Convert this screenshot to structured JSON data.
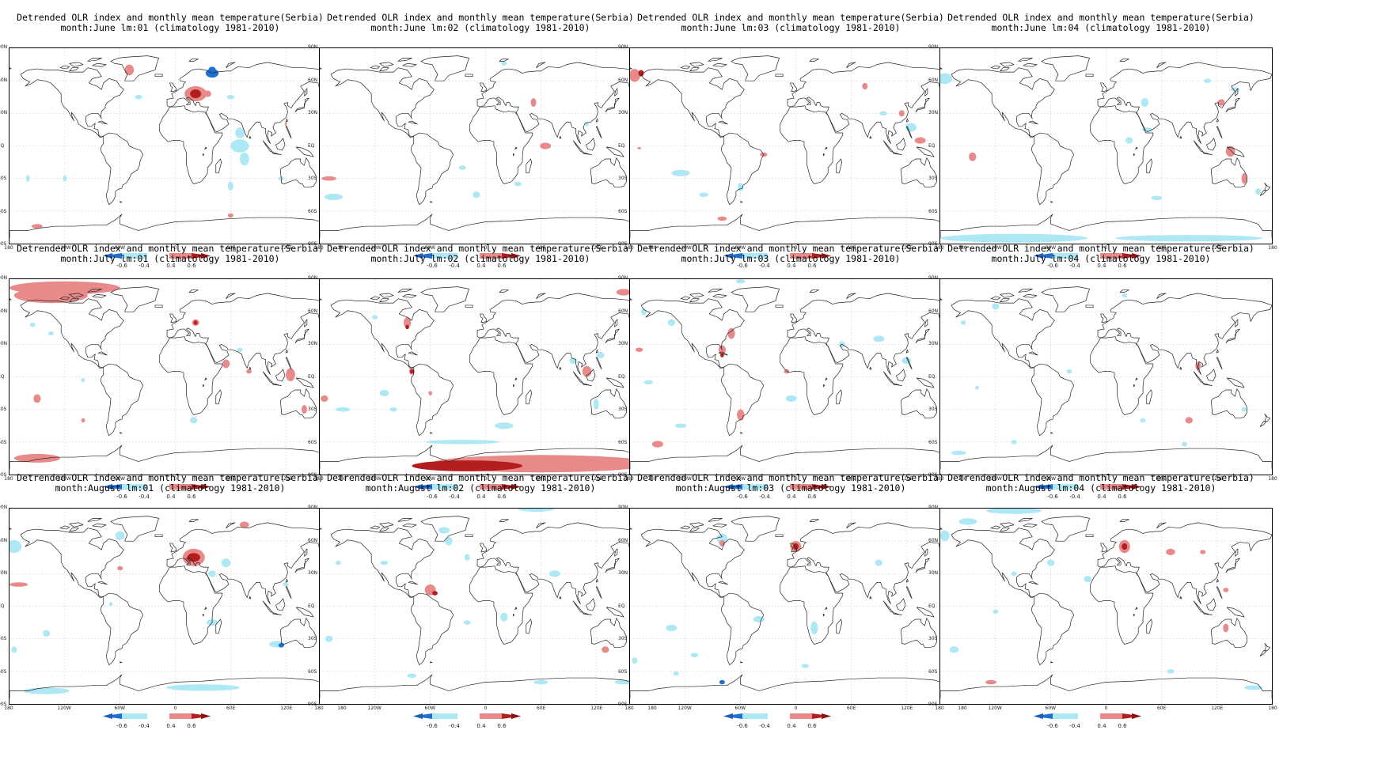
{
  "figure": {
    "title_line1": "Detrended OLR index and monthly mean temperature(Serbia)",
    "climatology": "(climatology 1981-2010)",
    "lat_labels": [
      "90N",
      "60N",
      "30N",
      "EQ",
      "30S",
      "60S",
      "90S"
    ],
    "lon_labels": [
      "180",
      "120W",
      "60W",
      "0",
      "60E",
      "120E",
      "180"
    ],
    "colorbar": {
      "labels": [
        "-0.6",
        "-0.4",
        "0.4",
        "0.6"
      ],
      "colors": {
        "strong_neg": "#1e6fd0",
        "weak_neg": "#aee8f5",
        "weak_pos": "#e88a8a",
        "strong_pos": "#b41e1e"
      }
    }
  },
  "panels": [
    {
      "month": "June",
      "lm": "01",
      "subtitle": "month:June lm:01 (climatology 1981-2010)"
    },
    {
      "month": "June",
      "lm": "02",
      "subtitle": "month:June lm:02 (climatology 1981-2010)"
    },
    {
      "month": "June",
      "lm": "03",
      "subtitle": "month:June lm:03 (climatology 1981-2010)"
    },
    {
      "month": "June",
      "lm": "04",
      "subtitle": "month:June lm:04 (climatology 1981-2010)"
    },
    {
      "month": "July",
      "lm": "01",
      "subtitle": "month:July lm:01 (climatology 1981-2010)"
    },
    {
      "month": "July",
      "lm": "02",
      "subtitle": "month:July lm:02 (climatology 1981-2010)"
    },
    {
      "month": "July",
      "lm": "03",
      "subtitle": "month:July lm:03 (climatology 1981-2010)"
    },
    {
      "month": "July",
      "lm": "04",
      "subtitle": "month:July lm:04 (climatology 1981-2010)"
    },
    {
      "month": "August",
      "lm": "01",
      "subtitle": "month:August lm:01 (climatology 1981-2010)"
    },
    {
      "month": "August",
      "lm": "02",
      "subtitle": "month:August lm:02 (climatology 1981-2010)"
    },
    {
      "month": "August",
      "lm": "03",
      "subtitle": "month:August lm:03 (climatology 1981-2010)"
    },
    {
      "month": "August",
      "lm": "04",
      "subtitle": "month:August lm:04 (climatology 1981-2010)"
    }
  ]
}
